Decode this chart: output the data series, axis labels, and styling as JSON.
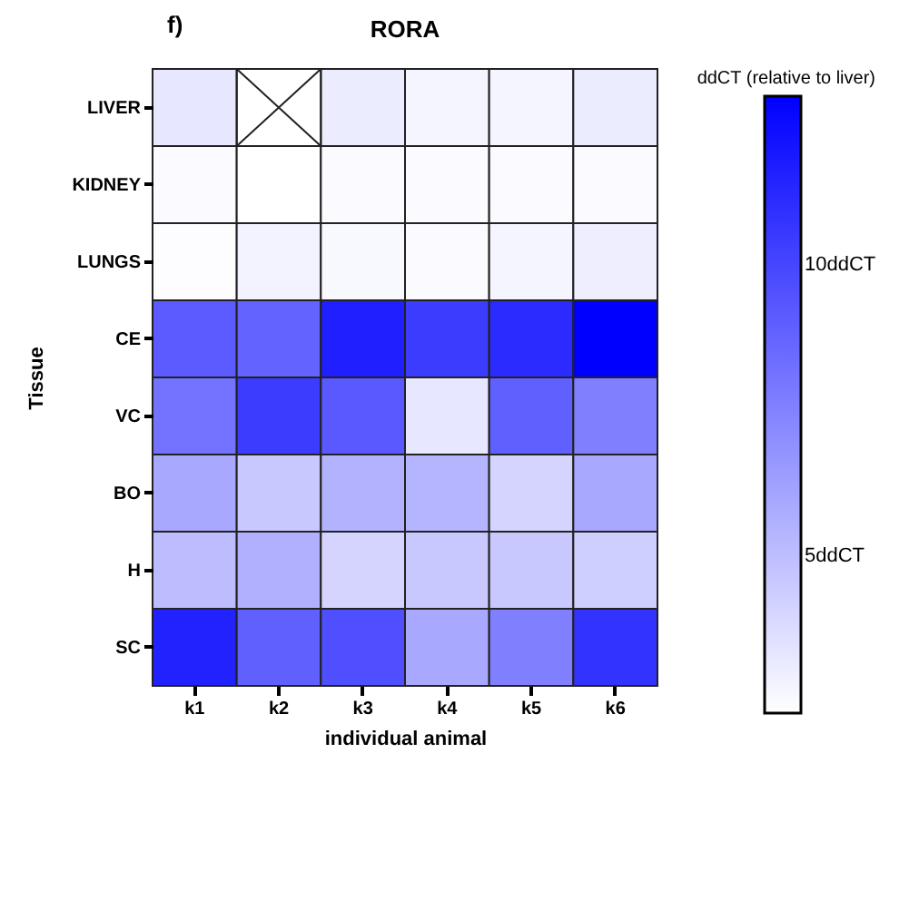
{
  "chart_data": {
    "type": "heatmap",
    "title": "RORA",
    "annotations": [
      "f)"
    ],
    "xlabel": "individual animal",
    "ylabel": "Tissue",
    "legend_title": "ddCT (relative to liver)",
    "categories": [
      "k1",
      "k2",
      "k3",
      "k4",
      "k5",
      "k6"
    ],
    "y_categories": [
      "LIVER",
      "KIDNEY",
      "LUNGS",
      "CE",
      "VC",
      "BO",
      "H",
      "SC"
    ],
    "cells": [
      [
        3.3,
        null,
        3.1,
        2.7,
        2.7,
        3.1
      ],
      [
        2.5,
        2.3,
        2.5,
        2.5,
        2.5,
        2.5
      ],
      [
        2.4,
        2.8,
        2.6,
        2.5,
        2.7,
        3.0
      ],
      [
        9.1,
        8.8,
        11.6,
        10.4,
        11.1,
        12.9
      ],
      [
        8.1,
        10.4,
        9.2,
        3.3,
        8.9,
        7.6
      ],
      [
        5.9,
        4.6,
        5.5,
        5.4,
        4.1,
        5.9
      ],
      [
        5.1,
        5.6,
        4.1,
        4.6,
        4.6,
        4.3
      ],
      [
        11.5,
        8.9,
        9.6,
        5.9,
        7.6,
        10.8
      ]
    ],
    "clim": [
      2.3,
      12.9
    ],
    "cticks": [
      {
        "value": 5,
        "label": "5ddCT"
      },
      {
        "value": 10,
        "label": "10ddCT"
      }
    ],
    "colors": [
      "#ffffff",
      "#0000ff"
    ]
  }
}
